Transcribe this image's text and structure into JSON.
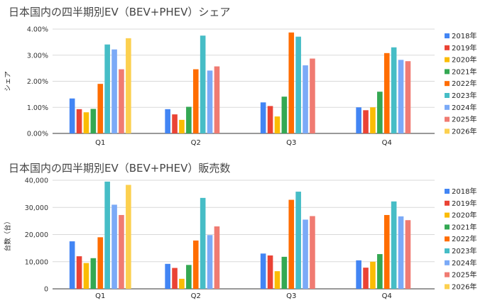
{
  "chart_data": [
    {
      "type": "bar",
      "title": "日本国内の四半期別EV（BEV+PHEV）シェア",
      "ylabel": "シェア",
      "xlabel": "",
      "ylim": [
        0,
        0.04
      ],
      "yticks": [
        "0.00%",
        "1.00%",
        "2.00%",
        "3.00%",
        "4.00%"
      ],
      "categories": [
        "Q1",
        "Q2",
        "Q3",
        "Q4"
      ],
      "legend_position": "right",
      "grid": true,
      "series": [
        {
          "name": "2018年",
          "color": "#4285f4",
          "values": [
            0.0134,
            0.0093,
            0.0119,
            0.01
          ]
        },
        {
          "name": "2019年",
          "color": "#ea4335",
          "values": [
            0.0093,
            0.0073,
            0.0105,
            0.0089
          ]
        },
        {
          "name": "2020年",
          "color": "#fbbc04",
          "values": [
            0.0081,
            0.0052,
            0.0065,
            0.01
          ]
        },
        {
          "name": "2021年",
          "color": "#34a853",
          "values": [
            0.0094,
            0.0102,
            0.0141,
            0.016
          ]
        },
        {
          "name": "2022年",
          "color": "#ff6d01",
          "values": [
            0.019,
            0.0246,
            0.0387,
            0.0308
          ]
        },
        {
          "name": "2023年",
          "color": "#46bdc6",
          "values": [
            0.0341,
            0.0375,
            0.0371,
            0.033
          ]
        },
        {
          "name": "2024年",
          "color": "#7baaf7",
          "values": [
            0.0322,
            0.0241,
            0.0261,
            0.0282
          ]
        },
        {
          "name": "2025年",
          "color": "#f07b72",
          "values": [
            0.0246,
            0.0257,
            0.0287,
            0.0277
          ]
        },
        {
          "name": "2026年",
          "color": "#fcd04f",
          "values": [
            0.0365,
            null,
            null,
            null
          ]
        }
      ]
    },
    {
      "type": "bar",
      "title": "日本国内の四半期別EV（BEV+PHEV）販売数",
      "ylabel": "台数（台）",
      "xlabel": "",
      "ylim": [
        0,
        40000
      ],
      "yticks": [
        "0",
        "10,000",
        "20,000",
        "30,000",
        "40,000"
      ],
      "categories": [
        "Q1",
        "Q2",
        "Q3",
        "Q4"
      ],
      "legend_position": "right",
      "grid": true,
      "series": [
        {
          "name": "2018年",
          "color": "#4285f4",
          "values": [
            17500,
            9200,
            13000,
            10500
          ]
        },
        {
          "name": "2019年",
          "color": "#ea4335",
          "values": [
            12000,
            7700,
            12300,
            7800
          ]
        },
        {
          "name": "2020年",
          "color": "#fbbc04",
          "values": [
            9500,
            3700,
            6500,
            10000
          ]
        },
        {
          "name": "2021年",
          "color": "#34a853",
          "values": [
            11300,
            8800,
            11800,
            12800
          ]
        },
        {
          "name": "2022年",
          "color": "#ff6d01",
          "values": [
            19000,
            17800,
            32800,
            27200
          ]
        },
        {
          "name": "2023年",
          "color": "#46bdc6",
          "values": [
            39500,
            33500,
            35800,
            32200
          ]
        },
        {
          "name": "2024年",
          "color": "#7baaf7",
          "values": [
            31000,
            19800,
            25500,
            26700
          ]
        },
        {
          "name": "2025年",
          "color": "#f07b72",
          "values": [
            27200,
            23000,
            26800,
            25300
          ]
        },
        {
          "name": "2026年",
          "color": "#fcd04f",
          "values": [
            38300,
            null,
            null,
            null
          ]
        }
      ]
    }
  ]
}
